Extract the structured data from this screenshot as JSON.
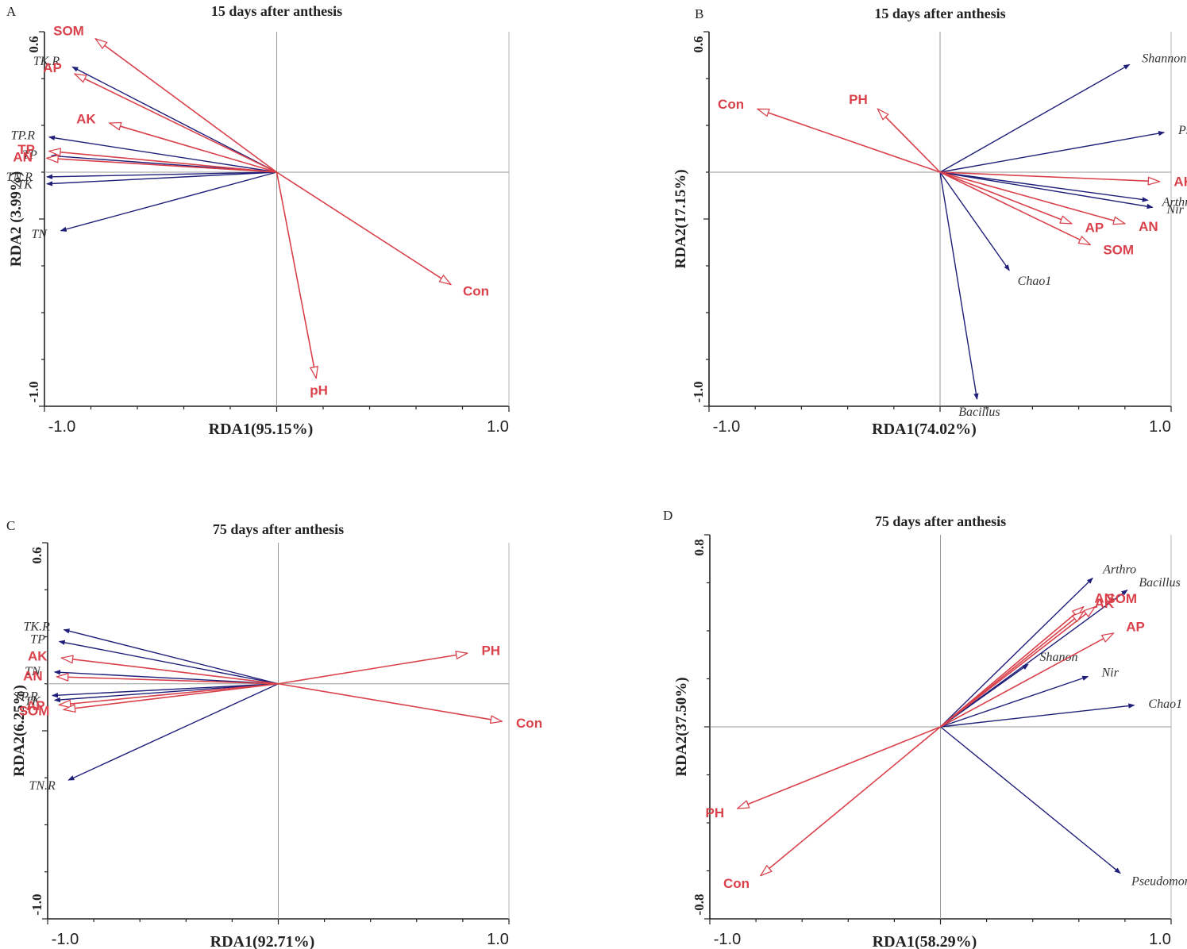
{
  "chart_data": [
    {
      "type": "scatter",
      "panel": "A",
      "title": "15 days after anthesis",
      "xlabel": "RDA1(95.15%)",
      "ylabel": "RDA2 (3.99%)",
      "xlim": [
        -1.0,
        1.0
      ],
      "ylim": [
        -1.0,
        0.6
      ],
      "xtick_labels": [
        "-1.0",
        "1.0"
      ],
      "ytick_labels": [
        "0.6",
        "-1.0"
      ],
      "environment_vectors": [
        {
          "name": "SOM",
          "x": -0.78,
          "y": 0.57
        },
        {
          "name": "AP",
          "x": -0.87,
          "y": 0.42
        },
        {
          "name": "AK",
          "x": -0.72,
          "y": 0.21
        },
        {
          "name": "TP",
          "x": -0.98,
          "y": 0.09
        },
        {
          "name": "AN",
          "x": -0.99,
          "y": 0.06
        },
        {
          "name": "Con",
          "x": 0.75,
          "y": -0.48
        },
        {
          "name": "pH",
          "x": 0.17,
          "y": -0.88
        }
      ],
      "species_vectors": [
        {
          "name": "TK.R",
          "x": -0.88,
          "y": 0.45
        },
        {
          "name": "TP.R",
          "x": -0.98,
          "y": 0.15
        },
        {
          "name": "TP",
          "x": -0.97,
          "y": 0.07
        },
        {
          "name": "TK",
          "x": -0.99,
          "y": -0.05
        },
        {
          "name": "TN.R",
          "x": -0.99,
          "y": -0.02
        },
        {
          "name": "TN",
          "x": -0.93,
          "y": -0.25
        }
      ]
    },
    {
      "type": "scatter",
      "panel": "B",
      "title": "15 days after anthesis",
      "xlabel": "RDA1(74.02%)",
      "ylabel": "RDA2(17.15%)",
      "xlim": [
        -1.0,
        1.0
      ],
      "ylim": [
        -1.0,
        0.6
      ],
      "xtick_labels": [
        "-1.0",
        "1.0"
      ],
      "ytick_labels": [
        "0.6",
        "-1.0"
      ],
      "environment_vectors": [
        {
          "name": "Con",
          "x": -0.79,
          "y": 0.27
        },
        {
          "name": "PH",
          "x": -0.27,
          "y": 0.27
        },
        {
          "name": "AK",
          "x": 0.95,
          "y": -0.04
        },
        {
          "name": "AN",
          "x": 0.8,
          "y": -0.22
        },
        {
          "name": "AP",
          "x": 0.57,
          "y": -0.22
        },
        {
          "name": "SOM",
          "x": 0.65,
          "y": -0.31
        }
      ],
      "species_vectors": [
        {
          "name": "Shannon",
          "x": 0.82,
          "y": 0.46
        },
        {
          "name": "Pseudomonas",
          "x": 0.97,
          "y": 0.17
        },
        {
          "name": "Arthro",
          "x": 0.9,
          "y": -0.12
        },
        {
          "name": "Nir",
          "x": 0.92,
          "y": -0.15
        },
        {
          "name": "Chao1",
          "x": 0.3,
          "y": -0.42
        },
        {
          "name": "Bacillus",
          "x": 0.16,
          "y": -0.97
        }
      ]
    },
    {
      "type": "scatter",
      "panel": "C",
      "title": "75 days after anthesis",
      "xlabel": "RDA1(92.71%)",
      "ylabel": "RDA2(6.25%)",
      "xlim": [
        -1.0,
        1.0
      ],
      "ylim": [
        -1.0,
        0.6
      ],
      "xtick_labels": [
        "-1.0",
        "1.0"
      ],
      "ytick_labels": [
        "0.6",
        "-1.0"
      ],
      "environment_vectors": [
        {
          "name": "PH",
          "x": 0.82,
          "y": 0.13
        },
        {
          "name": "Con",
          "x": 0.97,
          "y": -0.16
        },
        {
          "name": "AK",
          "x": -0.94,
          "y": 0.11
        },
        {
          "name": "AN",
          "x": -0.96,
          "y": 0.03
        },
        {
          "name": "AP",
          "x": -0.95,
          "y": -0.09
        },
        {
          "name": "SOM",
          "x": -0.93,
          "y": -0.11
        }
      ],
      "species_vectors": [
        {
          "name": "TK.R",
          "x": -0.93,
          "y": 0.23
        },
        {
          "name": "TP",
          "x": -0.95,
          "y": 0.18
        },
        {
          "name": "TN",
          "x": -0.97,
          "y": 0.05
        },
        {
          "name": "TP.R",
          "x": -0.98,
          "y": -0.05
        },
        {
          "name": "TK",
          "x": -0.97,
          "y": -0.07
        },
        {
          "name": "TN.R",
          "x": -0.91,
          "y": -0.41
        }
      ]
    },
    {
      "type": "scatter",
      "panel": "D",
      "title": "75 days after anthesis",
      "xlabel": "RDA1(58.29%)",
      "ylabel": "RDA2(37.50%)",
      "xlim": [
        -1.0,
        1.0
      ],
      "ylim": [
        -0.8,
        0.8
      ],
      "xtick_labels": [
        "-1.0",
        "1.0"
      ],
      "ytick_labels": [
        "0.8",
        "-0.8"
      ],
      "environment_vectors": [
        {
          "name": "PH",
          "x": -0.88,
          "y": -0.34
        },
        {
          "name": "Con",
          "x": -0.78,
          "y": -0.62
        },
        {
          "name": "AN",
          "x": 0.62,
          "y": 0.5
        },
        {
          "name": "SOM",
          "x": 0.67,
          "y": 0.5
        },
        {
          "name": "AK",
          "x": 0.62,
          "y": 0.48
        },
        {
          "name": "AP",
          "x": 0.75,
          "y": 0.39
        }
      ],
      "species_vectors": [
        {
          "name": "Arthro",
          "x": 0.66,
          "y": 0.62
        },
        {
          "name": "Bacillus",
          "x": 0.81,
          "y": 0.57
        },
        {
          "name": "Shanon",
          "x": 0.38,
          "y": 0.26
        },
        {
          "name": "Nir",
          "x": 0.64,
          "y": 0.21
        },
        {
          "name": "Chao1",
          "x": 0.84,
          "y": 0.09
        },
        {
          "name": "Pseudomonas",
          "x": 0.78,
          "y": -0.61
        }
      ]
    }
  ],
  "colors": {
    "environment": "#d9414b",
    "species": "#1f1f7a",
    "axis": "#222222",
    "refline": "#9a9a9a"
  }
}
